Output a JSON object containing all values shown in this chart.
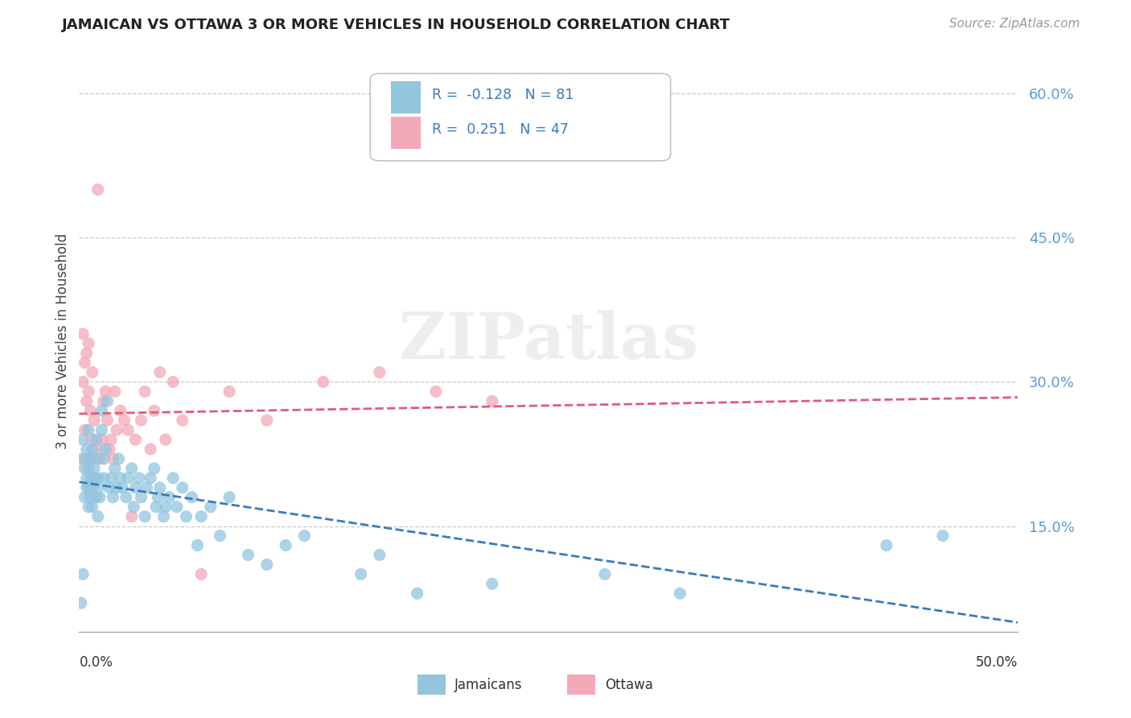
{
  "title": "JAMAICAN VS OTTAWA 3 OR MORE VEHICLES IN HOUSEHOLD CORRELATION CHART",
  "source_text": "Source: ZipAtlas.com",
  "ylabel": "3 or more Vehicles in Household",
  "ytick_labels": [
    "15.0%",
    "30.0%",
    "45.0%",
    "60.0%"
  ],
  "ytick_values": [
    0.15,
    0.3,
    0.45,
    0.6
  ],
  "xmin": 0.0,
  "xmax": 0.5,
  "ymin": 0.04,
  "ymax": 0.645,
  "jamaicans_R": -0.128,
  "jamaicans_N": 81,
  "ottawa_R": 0.251,
  "ottawa_N": 47,
  "jamaican_color": "#92c5de",
  "ottawa_color": "#f4a9b8",
  "jamaican_line_color": "#3a7abf",
  "ottawa_line_color": "#e05c7a",
  "watermark": "ZIPatlas",
  "legend_R_color": "#3a7abf",
  "legend_N_color": "#222222",
  "ytick_color": "#5b9bd5",
  "jamaicans_x": [
    0.001,
    0.002,
    0.002,
    0.003,
    0.003,
    0.003,
    0.004,
    0.004,
    0.004,
    0.005,
    0.005,
    0.005,
    0.005,
    0.006,
    0.006,
    0.006,
    0.007,
    0.007,
    0.007,
    0.008,
    0.008,
    0.009,
    0.009,
    0.009,
    0.01,
    0.01,
    0.01,
    0.011,
    0.012,
    0.012,
    0.013,
    0.013,
    0.014,
    0.015,
    0.016,
    0.017,
    0.018,
    0.019,
    0.02,
    0.021,
    0.022,
    0.023,
    0.025,
    0.026,
    0.028,
    0.029,
    0.03,
    0.032,
    0.033,
    0.035,
    0.036,
    0.038,
    0.04,
    0.041,
    0.042,
    0.043,
    0.045,
    0.046,
    0.048,
    0.05,
    0.052,
    0.055,
    0.057,
    0.06,
    0.063,
    0.065,
    0.07,
    0.075,
    0.08,
    0.09,
    0.1,
    0.11,
    0.12,
    0.15,
    0.16,
    0.18,
    0.22,
    0.28,
    0.32,
    0.43,
    0.46
  ],
  "jamaicans_y": [
    0.07,
    0.1,
    0.24,
    0.21,
    0.18,
    0.22,
    0.2,
    0.19,
    0.23,
    0.17,
    0.19,
    0.21,
    0.25,
    0.18,
    0.2,
    0.22,
    0.19,
    0.17,
    0.23,
    0.21,
    0.2,
    0.18,
    0.22,
    0.24,
    0.19,
    0.16,
    0.2,
    0.18,
    0.25,
    0.27,
    0.2,
    0.22,
    0.23,
    0.28,
    0.19,
    0.2,
    0.18,
    0.21,
    0.19,
    0.22,
    0.2,
    0.19,
    0.18,
    0.2,
    0.21,
    0.17,
    0.19,
    0.2,
    0.18,
    0.16,
    0.19,
    0.2,
    0.21,
    0.17,
    0.18,
    0.19,
    0.16,
    0.17,
    0.18,
    0.2,
    0.17,
    0.19,
    0.16,
    0.18,
    0.13,
    0.16,
    0.17,
    0.14,
    0.18,
    0.12,
    0.11,
    0.13,
    0.14,
    0.1,
    0.12,
    0.08,
    0.09,
    0.1,
    0.08,
    0.13,
    0.14
  ],
  "ottawa_x": [
    0.001,
    0.002,
    0.002,
    0.003,
    0.003,
    0.004,
    0.004,
    0.005,
    0.005,
    0.006,
    0.006,
    0.007,
    0.007,
    0.008,
    0.008,
    0.009,
    0.01,
    0.011,
    0.012,
    0.013,
    0.014,
    0.015,
    0.016,
    0.017,
    0.018,
    0.019,
    0.02,
    0.022,
    0.024,
    0.026,
    0.028,
    0.03,
    0.033,
    0.035,
    0.038,
    0.04,
    0.043,
    0.046,
    0.05,
    0.055,
    0.065,
    0.08,
    0.1,
    0.13,
    0.16,
    0.19,
    0.22
  ],
  "ottawa_y": [
    0.22,
    0.35,
    0.3,
    0.32,
    0.25,
    0.28,
    0.33,
    0.29,
    0.34,
    0.27,
    0.22,
    0.24,
    0.31,
    0.26,
    0.2,
    0.23,
    0.5,
    0.22,
    0.24,
    0.28,
    0.29,
    0.26,
    0.23,
    0.24,
    0.22,
    0.29,
    0.25,
    0.27,
    0.26,
    0.25,
    0.16,
    0.24,
    0.26,
    0.29,
    0.23,
    0.27,
    0.31,
    0.24,
    0.3,
    0.26,
    0.1,
    0.29,
    0.26,
    0.3,
    0.31,
    0.29,
    0.28
  ]
}
